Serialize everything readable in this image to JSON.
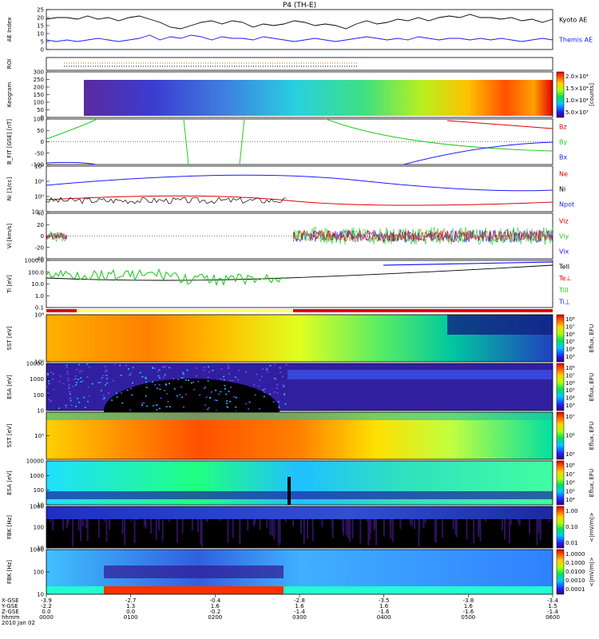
{
  "title": "P4 (TH-E)",
  "colors": {
    "black": "#000000",
    "blue": "#1a1aff",
    "red": "#e00000",
    "green": "#22cc22",
    "orange": "#dd6600"
  },
  "chart_data": [
    {
      "id": "ae",
      "type": "line",
      "ylabel": "AE Index",
      "ylim": [
        0,
        25
      ],
      "yticks": [
        "25",
        "20",
        "15",
        "10",
        "5",
        "0"
      ],
      "series": [
        {
          "name": "Kyoto AE",
          "color": "#000000",
          "values": [
            19,
            20,
            20,
            19,
            21,
            19,
            20,
            18,
            20,
            21,
            19,
            17,
            14,
            13,
            15,
            17,
            18,
            16,
            18,
            17,
            14,
            16,
            15,
            16,
            18,
            17,
            15,
            16,
            15,
            13,
            16,
            18,
            16,
            17,
            19,
            18,
            20,
            18,
            20,
            21,
            20,
            22,
            20,
            20,
            19,
            20,
            18,
            19,
            17,
            19
          ]
        },
        {
          "name": "Themis AE",
          "color": "#1a1aff",
          "values": [
            6,
            5,
            6,
            5,
            6,
            7,
            6,
            5,
            6,
            7,
            9,
            6,
            8,
            7,
            9,
            8,
            6,
            8,
            7,
            7,
            6,
            8,
            7,
            6,
            5,
            6,
            7,
            6,
            5,
            6,
            7,
            8,
            7,
            6,
            7,
            6,
            8,
            7,
            6,
            7,
            7,
            6,
            7,
            6,
            7,
            6,
            5,
            6,
            7,
            6
          ]
        }
      ]
    },
    {
      "id": "roi",
      "type": "bar",
      "ylabel": "ROI",
      "markers": [
        "orange dotted",
        "black dotted"
      ]
    },
    {
      "id": "keogram",
      "type": "heatmap",
      "ylabel": "Keogram",
      "yticks": [
        "300",
        "250",
        "200",
        "150",
        "100",
        "50",
        "0"
      ],
      "colorbar_label": "[counts]",
      "colorbar_ticks": [
        "2.0×10⁴",
        "1.5×10⁴",
        "1.0×10⁴",
        "5.0×10³"
      ]
    },
    {
      "id": "bfit",
      "type": "line",
      "ylabel": "B_FIT [GSE] [nT]",
      "ylim": [
        -100,
        100
      ],
      "yticks": [
        "100",
        "50",
        "0",
        "-50",
        "-100"
      ],
      "series": [
        {
          "name": "Bz",
          "color": "#e00000"
        },
        {
          "name": "By",
          "color": "#22cc22"
        },
        {
          "name": "Bx",
          "color": "#1a1aff"
        }
      ]
    },
    {
      "id": "ni",
      "type": "line",
      "ylabel": "Ni [1/cc]",
      "yticks": [
        "10⁴",
        "10²",
        "10⁰",
        "10⁻²"
      ],
      "series": [
        {
          "name": "Ne",
          "color": "#e00000"
        },
        {
          "name": "Ni",
          "color": "#000000"
        },
        {
          "name": "Npot",
          "color": "#1a1aff"
        }
      ]
    },
    {
      "id": "vi",
      "type": "line",
      "ylabel": "Vi [km/s]",
      "ylim": [
        -40,
        40
      ],
      "yticks": [
        "40",
        "20",
        "0",
        "-20",
        "-40"
      ],
      "series": [
        {
          "name": "Viz",
          "color": "#e00000"
        },
        {
          "name": "Viy",
          "color": "#22cc22"
        },
        {
          "name": "Vix",
          "color": "#1a1aff"
        }
      ]
    },
    {
      "id": "ti",
      "type": "line",
      "ylabel": "Ti [eV]",
      "yticks": [
        "1000.0",
        "100.0",
        "10.0",
        "1.0",
        "0.1"
      ],
      "series": [
        {
          "name": "TeII",
          "color": "#000000"
        },
        {
          "name": "Te⊥",
          "color": "#e00000"
        },
        {
          "name": "TiII",
          "color": "#22cc22"
        },
        {
          "name": "Ti⊥",
          "color": "#1a1aff"
        }
      ]
    },
    {
      "id": "sst_e",
      "type": "heatmap",
      "ylabel": "SST [eV]",
      "yticks": [
        "10⁶",
        "10⁵"
      ],
      "colorbar_label": "Eflux, EFU",
      "colorbar_ticks": [
        "10⁸",
        "10⁷",
        "10⁶",
        "10⁵",
        "10⁴",
        "10³"
      ]
    },
    {
      "id": "esa_e",
      "type": "heatmap",
      "ylabel": "ESA [eV]",
      "yticks": [
        "10000",
        "1000",
        "100",
        "10"
      ],
      "colorbar_label": "Eflux, EFU",
      "colorbar_ticks": [
        "10⁸",
        "10⁷",
        "10⁶",
        "10⁵",
        "10⁴",
        "10³"
      ]
    },
    {
      "id": "sst_i",
      "type": "heatmap",
      "ylabel": "SST [eV]",
      "yticks": [
        "10⁵"
      ],
      "colorbar_label": "Eflux, EFU",
      "colorbar_ticks": [
        "10⁷",
        "10⁶",
        "10⁵"
      ]
    },
    {
      "id": "esa_i",
      "type": "heatmap",
      "ylabel": "ESA [eV]",
      "yticks": [
        "10000",
        "1000",
        "100",
        "10"
      ],
      "colorbar_label": "Eflux, EFU",
      "colorbar_ticks": [
        "10⁸",
        "10⁷",
        "10⁶",
        "10⁵",
        "10⁴"
      ]
    },
    {
      "id": "fbk_e",
      "type": "heatmap",
      "ylabel": "FBK [Hz]",
      "yticks": [
        "1000",
        "100",
        "10"
      ],
      "colorbar_label": "<|mV/m|>",
      "colorbar_ticks": [
        "1.00",
        "0.10",
        "0.01"
      ]
    },
    {
      "id": "fbk_b",
      "type": "heatmap",
      "ylabel": "FBK [Hz]",
      "yticks": [
        "1000",
        "100",
        "10"
      ],
      "colorbar_label": "<|mV/m|>",
      "colorbar_ticks": [
        "1.0000",
        "0.1000",
        "0.0100",
        "0.0010",
        "0.0001"
      ]
    }
  ],
  "xaxis": {
    "row_labels": [
      "X-GSE",
      "Y-GSE",
      "Z-GSE",
      "hhmm",
      "2010 Jan 02"
    ],
    "x_gse": [
      "-3.9",
      "-2.7",
      "-0.4",
      "-2.8",
      "-3.5",
      "-3.8",
      "-3.4"
    ],
    "y_gse": [
      "-2.2",
      "1.3",
      "1.6",
      "1.6",
      "1.6",
      "1.6",
      "1.5"
    ],
    "z_gse": [
      "0.0",
      "0.0",
      "-0.2",
      "-1.4",
      "-1.6",
      "-1.6",
      "-1.4"
    ],
    "hhmm": [
      "0000",
      "0100",
      "0200",
      "0300",
      "0400",
      "0500",
      "0600"
    ]
  }
}
